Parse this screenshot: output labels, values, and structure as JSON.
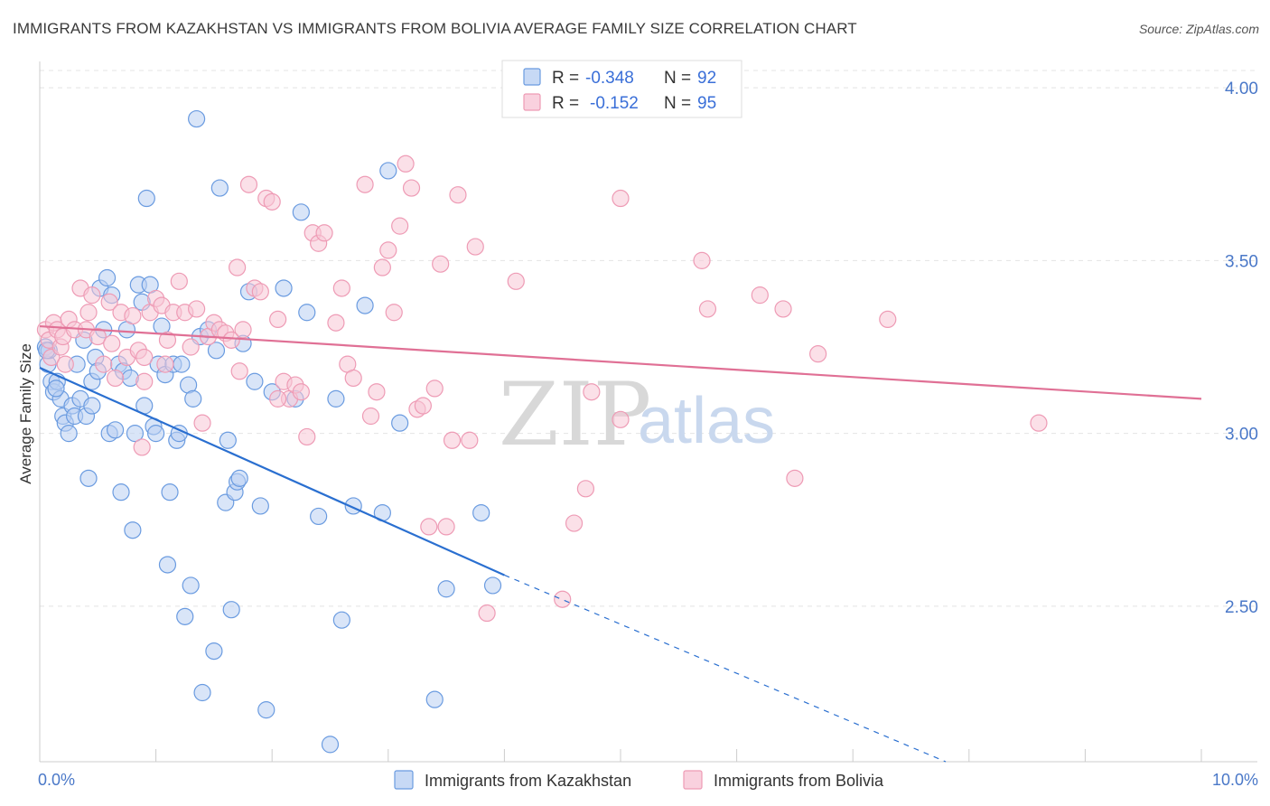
{
  "title": "IMMIGRANTS FROM KAZAKHSTAN VS IMMIGRANTS FROM BOLIVIA AVERAGE FAMILY SIZE CORRELATION CHART",
  "source": "Source: ZipAtlas.com",
  "watermark": {
    "zip": "ZIP",
    "atlas": "atlas"
  },
  "legend": {
    "rows": [
      {
        "r_label": "R =",
        "r_value": "-0.348",
        "n_label": "N =",
        "n_value": "92"
      },
      {
        "r_label": "R =",
        "r_value": "-0.152",
        "n_label": "N =",
        "n_value": "95"
      }
    ]
  },
  "colors": {
    "kazakhstan": "#6a9be0",
    "kazakhstan_fill": "#b9d0f2",
    "kazakhstan_line": "#2a6fd0",
    "bolivia": "#ee9bb5",
    "bolivia_fill": "#f7c6d6",
    "bolivia_line": "#e07095",
    "grid": "#e4e4e4",
    "axis_text": "#4a78c8"
  },
  "chart_data": {
    "type": "scatter",
    "title": "IMMIGRANTS FROM KAZAKHSTAN VS IMMIGRANTS FROM BOLIVIA AVERAGE FAMILY SIZE CORRELATION CHART",
    "xlabel": "",
    "ylabel": "Average Family Size",
    "xlim": [
      0,
      10
    ],
    "ylim": [
      2.05,
      4.05
    ],
    "x_tick_labels": [
      "0.0%",
      "10.0%"
    ],
    "y_ticks": [
      2.5,
      3.0,
      3.5,
      4.0
    ],
    "y_tick_labels": [
      "2.50",
      "3.00",
      "3.50",
      "4.00"
    ],
    "grid": true,
    "legend_position": "top-center",
    "series": [
      {
        "name": "Immigrants from Kazakhstan",
        "r": -0.348,
        "n": 92,
        "trend": {
          "x_start": 0.0,
          "y_start": 3.19,
          "x_end_solid": 4.0,
          "y_end_solid": 2.59,
          "x_end_dashed": 7.8,
          "y_end_dashed": 2.05
        },
        "points": [
          [
            0.05,
            3.25
          ],
          [
            0.07,
            3.2
          ],
          [
            0.08,
            3.24
          ],
          [
            0.1,
            3.15
          ],
          [
            0.12,
            3.12
          ],
          [
            0.15,
            3.15
          ],
          [
            0.18,
            3.1
          ],
          [
            0.2,
            3.05
          ],
          [
            0.22,
            3.03
          ],
          [
            0.25,
            3.0
          ],
          [
            0.28,
            3.08
          ],
          [
            0.3,
            3.05
          ],
          [
            0.32,
            3.2
          ],
          [
            0.35,
            3.1
          ],
          [
            0.38,
            3.27
          ],
          [
            0.4,
            3.05
          ],
          [
            0.42,
            2.87
          ],
          [
            0.45,
            3.15
          ],
          [
            0.45,
            3.08
          ],
          [
            0.48,
            3.22
          ],
          [
            0.5,
            3.18
          ],
          [
            0.52,
            3.42
          ],
          [
            0.55,
            3.3
          ],
          [
            0.58,
            3.45
          ],
          [
            0.6,
            3.0
          ],
          [
            0.62,
            3.4
          ],
          [
            0.65,
            3.01
          ],
          [
            0.68,
            3.2
          ],
          [
            0.7,
            2.83
          ],
          [
            0.72,
            3.18
          ],
          [
            0.75,
            3.3
          ],
          [
            0.78,
            3.16
          ],
          [
            0.8,
            2.72
          ],
          [
            0.82,
            3.0
          ],
          [
            0.85,
            3.43
          ],
          [
            0.88,
            3.38
          ],
          [
            0.9,
            3.08
          ],
          [
            0.92,
            3.68
          ],
          [
            0.95,
            3.43
          ],
          [
            0.98,
            3.02
          ],
          [
            1.0,
            3.0
          ],
          [
            1.02,
            3.2
          ],
          [
            1.05,
            3.31
          ],
          [
            1.08,
            3.17
          ],
          [
            1.1,
            2.62
          ],
          [
            1.12,
            2.83
          ],
          [
            1.15,
            3.2
          ],
          [
            1.18,
            2.98
          ],
          [
            1.2,
            3.0
          ],
          [
            1.22,
            3.2
          ],
          [
            1.25,
            2.47
          ],
          [
            1.28,
            3.14
          ],
          [
            1.3,
            2.56
          ],
          [
            1.32,
            3.1
          ],
          [
            1.35,
            3.91
          ],
          [
            1.38,
            3.28
          ],
          [
            1.4,
            2.25
          ],
          [
            1.45,
            3.3
          ],
          [
            1.5,
            2.37
          ],
          [
            1.52,
            3.24
          ],
          [
            1.55,
            3.71
          ],
          [
            1.6,
            2.8
          ],
          [
            1.62,
            2.98
          ],
          [
            1.65,
            2.49
          ],
          [
            1.68,
            2.83
          ],
          [
            1.7,
            2.86
          ],
          [
            1.72,
            2.87
          ],
          [
            1.75,
            3.26
          ],
          [
            1.8,
            3.41
          ],
          [
            1.85,
            3.15
          ],
          [
            1.9,
            2.79
          ],
          [
            1.95,
            2.2
          ],
          [
            2.0,
            3.12
          ],
          [
            2.1,
            3.42
          ],
          [
            2.2,
            3.1
          ],
          [
            2.25,
            3.64
          ],
          [
            2.3,
            3.35
          ],
          [
            2.4,
            2.76
          ],
          [
            2.5,
            2.1
          ],
          [
            2.55,
            3.1
          ],
          [
            2.6,
            2.46
          ],
          [
            2.7,
            2.79
          ],
          [
            2.8,
            3.37
          ],
          [
            2.95,
            2.77
          ],
          [
            3.0,
            3.76
          ],
          [
            3.1,
            3.03
          ],
          [
            3.5,
            2.55
          ],
          [
            3.8,
            2.77
          ],
          [
            3.9,
            2.56
          ],
          [
            3.4,
            2.23
          ],
          [
            0.06,
            3.24
          ],
          [
            0.14,
            3.13
          ]
        ]
      },
      {
        "name": "Immigrants from Bolivia",
        "r": -0.152,
        "n": 95,
        "trend": {
          "x_start": 0.0,
          "y_start": 3.31,
          "x_end": 10.0,
          "y_end": 3.1
        },
        "points": [
          [
            0.05,
            3.3
          ],
          [
            0.08,
            3.27
          ],
          [
            0.1,
            3.22
          ],
          [
            0.12,
            3.32
          ],
          [
            0.15,
            3.3
          ],
          [
            0.18,
            3.25
          ],
          [
            0.2,
            3.28
          ],
          [
            0.22,
            3.2
          ],
          [
            0.25,
            3.33
          ],
          [
            0.3,
            3.3
          ],
          [
            0.35,
            3.42
          ],
          [
            0.4,
            3.3
          ],
          [
            0.42,
            3.35
          ],
          [
            0.45,
            3.4
          ],
          [
            0.5,
            3.28
          ],
          [
            0.55,
            3.2
          ],
          [
            0.6,
            3.38
          ],
          [
            0.62,
            3.26
          ],
          [
            0.65,
            3.16
          ],
          [
            0.7,
            3.35
          ],
          [
            0.75,
            3.22
          ],
          [
            0.8,
            3.34
          ],
          [
            0.85,
            3.24
          ],
          [
            0.88,
            2.96
          ],
          [
            0.9,
            3.15
          ],
          [
            0.95,
            3.35
          ],
          [
            1.0,
            3.39
          ],
          [
            1.05,
            3.37
          ],
          [
            1.08,
            3.2
          ],
          [
            1.1,
            3.27
          ],
          [
            1.15,
            3.35
          ],
          [
            1.2,
            3.44
          ],
          [
            1.25,
            3.35
          ],
          [
            1.3,
            3.25
          ],
          [
            1.35,
            3.36
          ],
          [
            1.4,
            3.03
          ],
          [
            1.45,
            3.28
          ],
          [
            1.5,
            3.32
          ],
          [
            1.55,
            3.3
          ],
          [
            1.6,
            3.29
          ],
          [
            1.65,
            3.27
          ],
          [
            1.7,
            3.48
          ],
          [
            1.72,
            3.18
          ],
          [
            1.75,
            3.3
          ],
          [
            1.8,
            3.72
          ],
          [
            1.85,
            3.42
          ],
          [
            1.9,
            3.41
          ],
          [
            1.95,
            3.68
          ],
          [
            2.0,
            3.67
          ],
          [
            2.05,
            3.33
          ],
          [
            2.1,
            3.15
          ],
          [
            2.15,
            3.1
          ],
          [
            2.2,
            3.14
          ],
          [
            2.25,
            3.12
          ],
          [
            2.3,
            2.99
          ],
          [
            2.35,
            3.58
          ],
          [
            2.4,
            3.55
          ],
          [
            2.45,
            3.58
          ],
          [
            2.55,
            3.32
          ],
          [
            2.6,
            3.42
          ],
          [
            2.65,
            3.2
          ],
          [
            2.7,
            3.16
          ],
          [
            2.8,
            3.72
          ],
          [
            2.85,
            3.05
          ],
          [
            2.9,
            3.12
          ],
          [
            2.95,
            3.48
          ],
          [
            3.0,
            3.53
          ],
          [
            3.05,
            3.35
          ],
          [
            3.1,
            3.6
          ],
          [
            3.15,
            3.78
          ],
          [
            3.2,
            3.71
          ],
          [
            3.25,
            3.07
          ],
          [
            3.3,
            3.08
          ],
          [
            3.35,
            2.73
          ],
          [
            3.4,
            3.13
          ],
          [
            3.45,
            3.49
          ],
          [
            3.5,
            2.73
          ],
          [
            3.55,
            2.98
          ],
          [
            3.6,
            3.69
          ],
          [
            3.7,
            2.98
          ],
          [
            3.75,
            3.54
          ],
          [
            3.85,
            2.48
          ],
          [
            4.1,
            3.44
          ],
          [
            4.5,
            2.52
          ],
          [
            4.6,
            2.74
          ],
          [
            4.7,
            2.84
          ],
          [
            4.75,
            3.12
          ],
          [
            5.0,
            3.04
          ],
          [
            5.0,
            3.68
          ],
          [
            5.7,
            3.5
          ],
          [
            5.75,
            3.36
          ],
          [
            6.2,
            3.4
          ],
          [
            6.4,
            3.36
          ],
          [
            6.5,
            2.87
          ],
          [
            6.7,
            3.23
          ],
          [
            7.3,
            3.33
          ],
          [
            8.6,
            3.03
          ],
          [
            0.9,
            3.22
          ],
          [
            2.05,
            3.1
          ]
        ]
      }
    ]
  },
  "bottom_legend": {
    "items": [
      "Immigrants from Kazakhstan",
      "Immigrants from Bolivia"
    ]
  }
}
